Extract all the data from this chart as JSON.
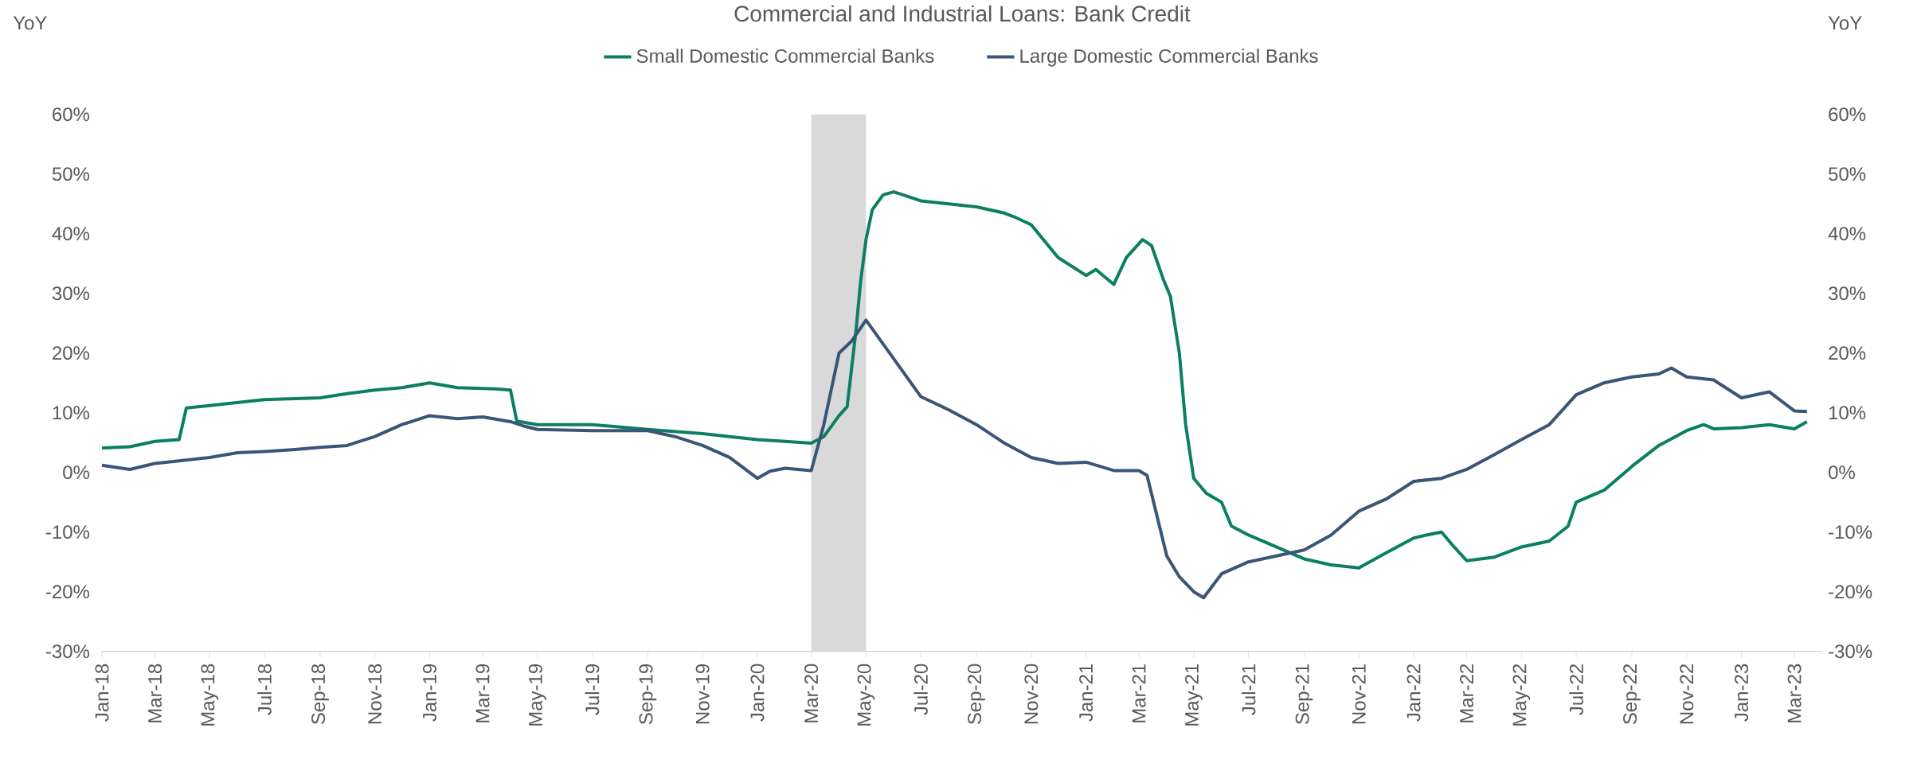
{
  "chart_data": {
    "type": "line",
    "title": "Commercial and Industrial Loans: Bank Credit",
    "ylabel": "YoY",
    "y2label": "YoY",
    "legend": "top",
    "line_style": "solid",
    "marker": "none",
    "xlim": [
      "2018-01-01",
      "2023-04-01"
    ],
    "xticks": [
      {
        "value": "2018-01-01",
        "label": "Jan-18"
      },
      {
        "value": "2018-03-01",
        "label": "Mar-18"
      },
      {
        "value": "2018-05-01",
        "label": "May-18"
      },
      {
        "value": "2018-07-01",
        "label": "Jul-18"
      },
      {
        "value": "2018-09-01",
        "label": "Sep-18"
      },
      {
        "value": "2018-11-01",
        "label": "Nov-18"
      },
      {
        "value": "2019-01-01",
        "label": "Jan-19"
      },
      {
        "value": "2019-03-01",
        "label": "Mar-19"
      },
      {
        "value": "2019-05-01",
        "label": "May-19"
      },
      {
        "value": "2019-07-01",
        "label": "Jul-19"
      },
      {
        "value": "2019-09-01",
        "label": "Sep-19"
      },
      {
        "value": "2019-11-01",
        "label": "Nov-19"
      },
      {
        "value": "2020-01-01",
        "label": "Jan-20"
      },
      {
        "value": "2020-03-01",
        "label": "Mar-20"
      },
      {
        "value": "2020-05-01",
        "label": "May-20"
      },
      {
        "value": "2020-07-01",
        "label": "Jul-20"
      },
      {
        "value": "2020-09-01",
        "label": "Sep-20"
      },
      {
        "value": "2020-11-01",
        "label": "Nov-20"
      },
      {
        "value": "2021-01-01",
        "label": "Jan-21"
      },
      {
        "value": "2021-03-01",
        "label": "Mar-21"
      },
      {
        "value": "2021-05-01",
        "label": "May-21"
      },
      {
        "value": "2021-07-01",
        "label": "Jul-21"
      },
      {
        "value": "2021-09-01",
        "label": "Sep-21"
      },
      {
        "value": "2021-11-01",
        "label": "Nov-21"
      },
      {
        "value": "2022-01-01",
        "label": "Jan-22"
      },
      {
        "value": "2022-03-01",
        "label": "Mar-22"
      },
      {
        "value": "2022-05-01",
        "label": "May-22"
      },
      {
        "value": "2022-07-01",
        "label": "Jul-22"
      },
      {
        "value": "2022-09-01",
        "label": "Sep-22"
      },
      {
        "value": "2022-11-01",
        "label": "Nov-22"
      },
      {
        "value": "2023-01-01",
        "label": "Jan-23"
      },
      {
        "value": "2023-03-01",
        "label": "Mar-23"
      }
    ],
    "ylim": [
      -30,
      60
    ],
    "yticks": [
      {
        "value": -30,
        "label": "-30%"
      },
      {
        "value": -20,
        "label": "-20%"
      },
      {
        "value": -10,
        "label": "-10%"
      },
      {
        "value": 0,
        "label": "0%"
      },
      {
        "value": 10,
        "label": "10%"
      },
      {
        "value": 20,
        "label": "20%"
      },
      {
        "value": 30,
        "label": "30%"
      },
      {
        "value": 40,
        "label": "40%"
      },
      {
        "value": 50,
        "label": "50%"
      },
      {
        "value": 60,
        "label": "60%"
      }
    ],
    "y2lim": [
      -30,
      60
    ],
    "y2ticks": [
      {
        "value": -30,
        "label": "-30%"
      },
      {
        "value": -20,
        "label": "-20%"
      },
      {
        "value": -10,
        "label": "-10%"
      },
      {
        "value": 0,
        "label": "0%"
      },
      {
        "value": 10,
        "label": "10%"
      },
      {
        "value": 20,
        "label": "20%"
      },
      {
        "value": 30,
        "label": "30%"
      },
      {
        "value": 40,
        "label": "40%"
      },
      {
        "value": 50,
        "label": "50%"
      },
      {
        "value": 60,
        "label": "60%"
      }
    ],
    "bands": [
      {
        "axis": "x",
        "from": "2020-03-01",
        "to": "2020-05-01",
        "color": "#d9d9d9"
      }
    ],
    "series": [
      {
        "name": "Small Domestic Commercial Banks",
        "color": "#0a7f62",
        "x": [
          "2018-01-01",
          "2018-02-01",
          "2018-03-01",
          "2018-03-28",
          "2018-04-05",
          "2018-05-01",
          "2018-07-01",
          "2018-09-01",
          "2018-10-01",
          "2018-11-01",
          "2018-12-01",
          "2019-01-01",
          "2019-02-01",
          "2019-03-15",
          "2019-04-01",
          "2019-04-08",
          "2019-05-01",
          "2019-07-01",
          "2019-09-01",
          "2019-11-01",
          "2019-12-01",
          "2020-01-01",
          "2020-02-01",
          "2020-03-01",
          "2020-03-15",
          "2020-04-01",
          "2020-04-10",
          "2020-04-20",
          "2020-04-25",
          "2020-05-01",
          "2020-05-08",
          "2020-05-20",
          "2020-06-01",
          "2020-07-01",
          "2020-08-01",
          "2020-09-01",
          "2020-10-01",
          "2020-10-15",
          "2020-11-01",
          "2020-12-01",
          "2021-01-01",
          "2021-01-12",
          "2021-02-01",
          "2021-02-15",
          "2021-03-05",
          "2021-03-15",
          "2021-03-28",
          "2021-04-05",
          "2021-04-15",
          "2021-04-22",
          "2021-05-01",
          "2021-05-15",
          "2021-06-01",
          "2021-06-12",
          "2021-07-01",
          "2021-08-01",
          "2021-09-01",
          "2021-10-01",
          "2021-11-01",
          "2021-12-01",
          "2022-01-01",
          "2022-01-15",
          "2022-02-01",
          "2022-02-15",
          "2022-03-01",
          "2022-04-01",
          "2022-05-01",
          "2022-06-01",
          "2022-06-22",
          "2022-07-01",
          "2022-08-01",
          "2022-09-01",
          "2022-10-01",
          "2022-11-01",
          "2022-11-20",
          "2022-12-01",
          "2023-01-01",
          "2023-02-01",
          "2023-03-01",
          "2023-03-15"
        ],
        "values": [
          4.1,
          4.3,
          5.2,
          5.5,
          10.8,
          11.2,
          12.2,
          12.5,
          13.2,
          13.8,
          14.2,
          15.0,
          14.2,
          14.0,
          13.8,
          8.6,
          8.0,
          8.0,
          7.2,
          6.5,
          6.0,
          5.5,
          5.2,
          4.9,
          6.0,
          9.5,
          11.0,
          24.0,
          32.0,
          39.0,
          44.0,
          46.5,
          47.0,
          45.5,
          45.0,
          44.5,
          43.5,
          42.7,
          41.5,
          36.0,
          33.0,
          34.0,
          31.5,
          36.0,
          39.0,
          38.0,
          32.4,
          29.5,
          20.0,
          8.0,
          -1.0,
          -3.5,
          -5.0,
          -9.0,
          -10.5,
          -12.5,
          -14.5,
          -15.5,
          -16.0,
          -13.5,
          -11.0,
          -10.5,
          -10.0,
          -12.5,
          -14.8,
          -14.2,
          -12.5,
          -11.5,
          -9.0,
          -5.0,
          -3.0,
          1.0,
          4.5,
          7.0,
          8.0,
          7.3,
          7.5,
          8.0,
          7.3,
          8.5
        ]
      },
      {
        "name": "Large Domestic Commercial Banks",
        "color": "#3a5577",
        "x": [
          "2018-01-01",
          "2018-02-01",
          "2018-03-01",
          "2018-04-01",
          "2018-05-01",
          "2018-06-01",
          "2018-07-01",
          "2018-08-01",
          "2018-09-01",
          "2018-10-01",
          "2018-11-01",
          "2018-12-01",
          "2019-01-01",
          "2019-02-01",
          "2019-03-01",
          "2019-04-01",
          "2019-04-15",
          "2019-05-01",
          "2019-07-01",
          "2019-09-01",
          "2019-10-01",
          "2019-11-01",
          "2019-12-01",
          "2020-01-01",
          "2020-01-15",
          "2020-02-01",
          "2020-03-01",
          "2020-03-15",
          "2020-04-01",
          "2020-04-15",
          "2020-05-01",
          "2020-06-01",
          "2020-07-01",
          "2020-08-01",
          "2020-09-01",
          "2020-10-01",
          "2020-11-01",
          "2020-12-01",
          "2021-01-01",
          "2021-02-01",
          "2021-03-01",
          "2021-03-10",
          "2021-04-01",
          "2021-04-15",
          "2021-05-01",
          "2021-05-12",
          "2021-06-01",
          "2021-07-01",
          "2021-08-01",
          "2021-09-01",
          "2021-10-01",
          "2021-11-01",
          "2021-12-01",
          "2022-01-01",
          "2022-02-01",
          "2022-03-01",
          "2022-04-01",
          "2022-05-01",
          "2022-06-01",
          "2022-07-01",
          "2022-08-01",
          "2022-09-01",
          "2022-10-01",
          "2022-10-15",
          "2022-11-01",
          "2022-12-01",
          "2023-01-01",
          "2023-02-01",
          "2023-03-01",
          "2023-03-15"
        ],
        "values": [
          1.2,
          0.5,
          1.5,
          2.0,
          2.5,
          3.3,
          3.5,
          3.8,
          4.2,
          4.5,
          6.0,
          8.0,
          9.5,
          9.0,
          9.3,
          8.5,
          7.8,
          7.2,
          7.0,
          7.0,
          6.0,
          4.5,
          2.5,
          -1.0,
          0.2,
          0.7,
          0.3,
          8.0,
          20.0,
          22.0,
          25.5,
          19.0,
          12.7,
          10.5,
          8.0,
          5.0,
          2.5,
          1.5,
          1.7,
          0.3,
          0.3,
          -0.5,
          -14.0,
          -17.5,
          -20.0,
          -21.0,
          -17.0,
          -15.0,
          -14.0,
          -13.0,
          -10.5,
          -6.5,
          -4.5,
          -1.5,
          -1.0,
          0.5,
          3.0,
          5.5,
          8.0,
          13.0,
          15.0,
          16.0,
          16.5,
          17.5,
          16.0,
          15.5,
          12.5,
          13.5,
          10.3,
          10.2
        ]
      }
    ]
  }
}
